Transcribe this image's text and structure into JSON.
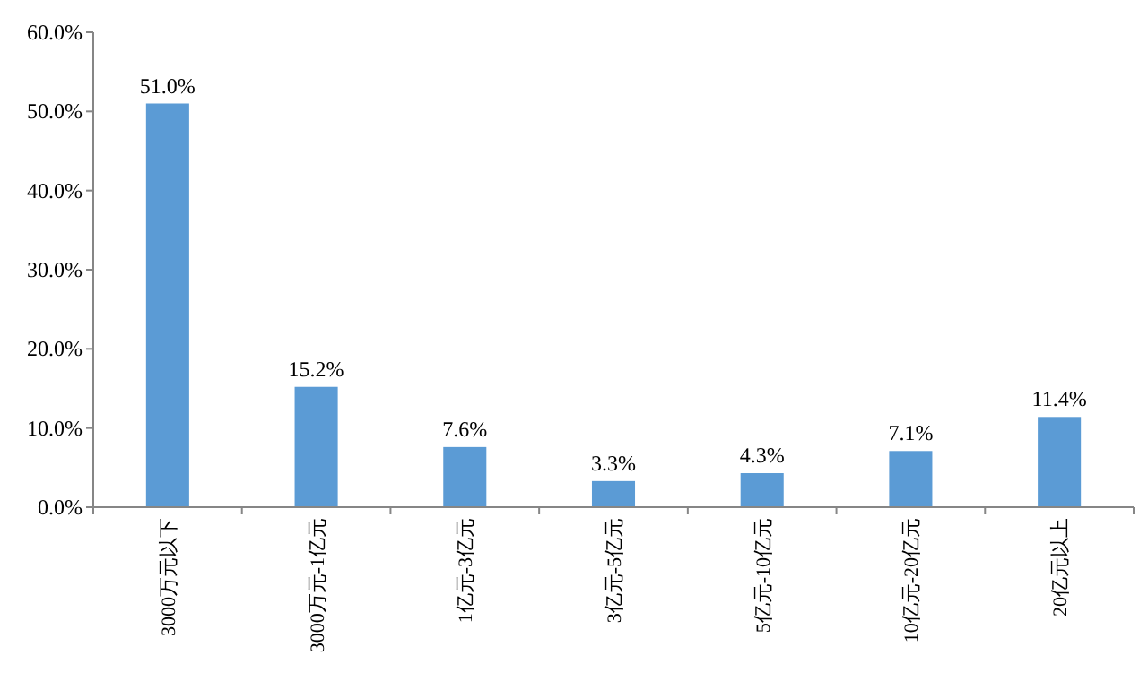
{
  "chart_data": {
    "type": "bar",
    "categories": [
      "3000万元以下",
      "3000万元-1亿元",
      "1亿元-3亿元",
      "3亿元-5亿元",
      "5亿元-10亿元",
      "10亿元-20亿元",
      "20亿元以上"
    ],
    "values": [
      51.0,
      15.2,
      7.6,
      3.3,
      4.3,
      7.1,
      11.4
    ],
    "value_labels": [
      "51.0%",
      "15.2%",
      "7.6%",
      "3.3%",
      "4.3%",
      "7.1%",
      "11.4%"
    ],
    "color": "#5b9bd5",
    "ylim": [
      0,
      60
    ],
    "yticks": [
      {
        "value": 0,
        "label": "0.0%"
      },
      {
        "value": 10,
        "label": "10.0%"
      },
      {
        "value": 20,
        "label": "20.0%"
      },
      {
        "value": 30,
        "label": "30.0%"
      },
      {
        "value": 40,
        "label": "40.0%"
      },
      {
        "value": 50,
        "label": "50.0%"
      },
      {
        "value": 60,
        "label": "60.0%"
      }
    ]
  }
}
